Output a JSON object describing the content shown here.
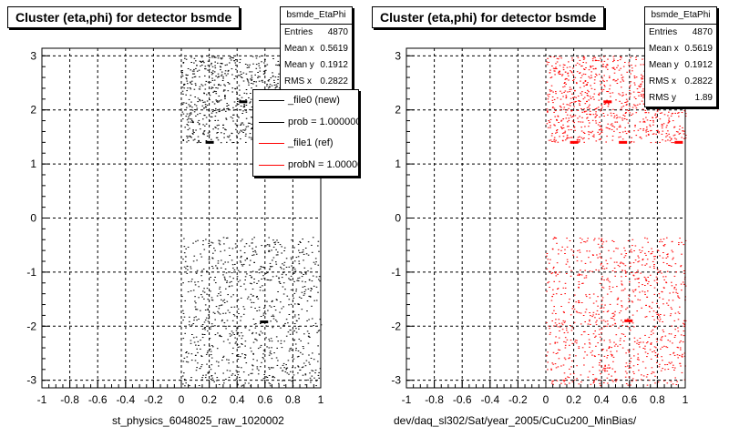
{
  "colors": {
    "new": "#000000",
    "ref": "#ff0000",
    "frame": "#000000",
    "grid": "#000000"
  },
  "panels": [
    {
      "title": "Cluster (eta,phi) for detector bsmde",
      "x_title": "st_physics_6048025_raw_1020002",
      "stats": {
        "name": "bsmde_EtaPhi",
        "rows": [
          {
            "label": "Entries",
            "value": "4870"
          },
          {
            "label": "Mean x",
            "value": "0.5619"
          },
          {
            "label": "Mean y",
            "value": "0.1912"
          },
          {
            "label": "RMS x",
            "value": "0.2822"
          }
        ]
      },
      "legend": [
        "_file0 (new)",
        "prob = 1.000000",
        "_file1 (ref)",
        "probN = 1.000000"
      ]
    },
    {
      "title": "Cluster (eta,phi) for detector bsmde",
      "x_title": "dev/daq_sl302/Sat/year_2005/CuCu200_MinBias/",
      "stats": {
        "name": "bsmde_EtaPhi",
        "rows": [
          {
            "label": "Entries",
            "value": "4870"
          },
          {
            "label": "Mean x",
            "value": "0.5619"
          },
          {
            "label": "Mean y",
            "value": "0.1912"
          },
          {
            "label": "RMS x",
            "value": "0.2822"
          },
          {
            "label": "RMS y",
            "value": "1.89"
          }
        ]
      }
    }
  ],
  "chart_data": [
    {
      "type": "scatter",
      "title": "Cluster (eta,phi) for detector bsmde",
      "xlabel": "st_physics_6048025_raw_1020002",
      "ylabel": "",
      "xlim": [
        -1,
        1
      ],
      "ylim": [
        -3.14,
        3.14
      ],
      "xticks": [
        -1,
        -0.8,
        -0.6,
        -0.4,
        -0.2,
        0,
        0.2,
        0.4,
        0.6,
        0.8,
        1
      ],
      "xtick_labels": [
        "-1",
        "-0.8",
        "-0.6",
        "-0.4",
        "-0.2",
        "0",
        "0.2",
        "0.4",
        "0.6",
        "0.8",
        "1"
      ],
      "yticks": [
        -3,
        -2,
        -1,
        0,
        1,
        2,
        3
      ],
      "ytick_labels": [
        "-3",
        "-2",
        "-1",
        "0",
        "1",
        "2",
        "3"
      ],
      "grid": true,
      "series": [
        {
          "name": "_file0 (new)",
          "color": "#000000",
          "regions": [
            {
              "x": [
                0.0,
                1.0
              ],
              "y": [
                1.4,
                3.0
              ]
            },
            {
              "x": [
                0.0,
                1.0
              ],
              "y": [
                -3.1,
                -0.35
              ]
            }
          ],
          "hotspots": [
            [
              0.2,
              1.4
            ],
            [
              0.44,
              2.15
            ],
            [
              0.59,
              -1.92
            ]
          ]
        }
      ],
      "legend_position": "top-right"
    },
    {
      "type": "scatter",
      "title": "Cluster (eta,phi) for detector bsmde",
      "xlabel": "dev/daq_sl302/Sat/year_2005/CuCu200_MinBias/",
      "ylabel": "",
      "xlim": [
        -1,
        1
      ],
      "ylim": [
        -3.14,
        3.14
      ],
      "xticks": [
        -1,
        -0.8,
        -0.6,
        -0.4,
        -0.2,
        0,
        0.2,
        0.4,
        0.6,
        0.8,
        1
      ],
      "xtick_labels": [
        "-1",
        "-0.8",
        "-0.6",
        "-0.4",
        "-0.2",
        "0",
        "0.2",
        "0.4",
        "0.6",
        "0.8",
        "1"
      ],
      "yticks": [
        -3,
        -2,
        -1,
        0,
        1,
        2,
        3
      ],
      "ytick_labels": [
        "-3",
        "-2",
        "-1",
        "0",
        "1",
        "2",
        "3"
      ],
      "grid": true,
      "series": [
        {
          "name": "_file1 (ref)",
          "color": "#ff0000",
          "regions": [
            {
              "x": [
                0.0,
                1.0
              ],
              "y": [
                1.4,
                3.0
              ]
            },
            {
              "x": [
                0.0,
                1.0
              ],
              "y": [
                -3.1,
                -0.35
              ]
            }
          ],
          "hotspots": [
            [
              0.2,
              1.4
            ],
            [
              0.44,
              2.15
            ],
            [
              0.55,
              1.4
            ],
            [
              0.95,
              1.4
            ],
            [
              0.59,
              -1.9
            ]
          ]
        }
      ]
    }
  ]
}
